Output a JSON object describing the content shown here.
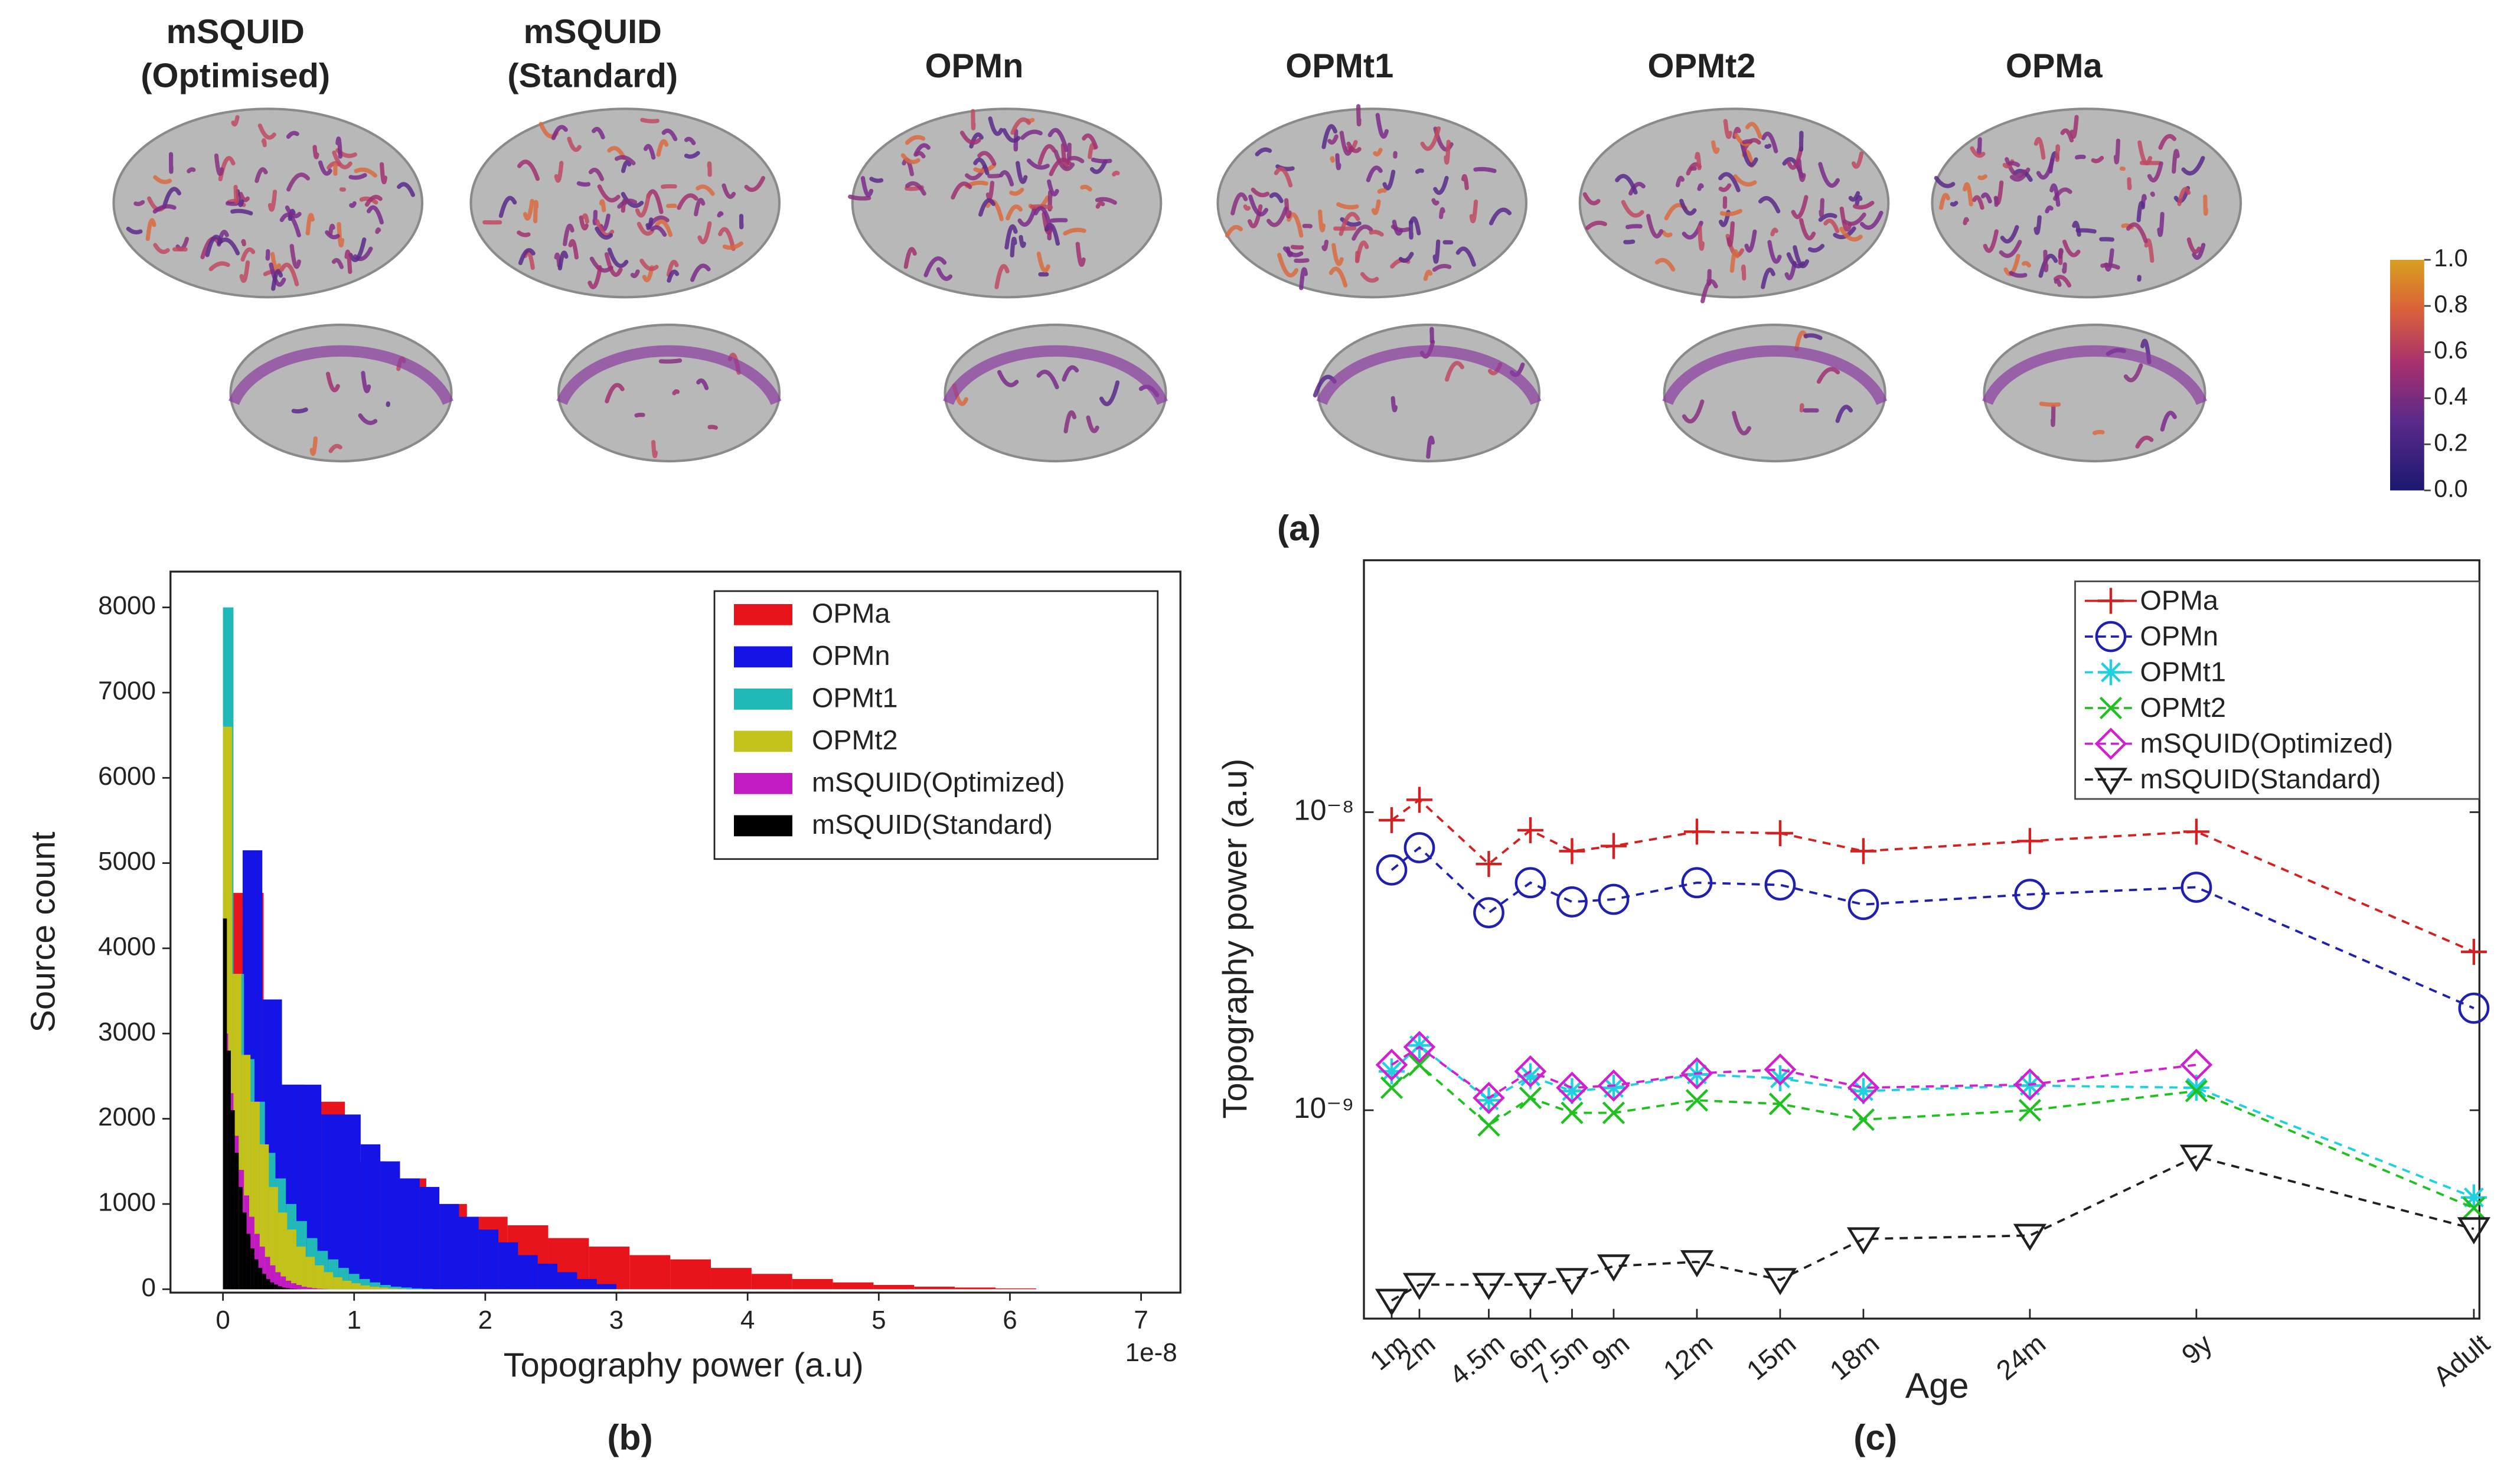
{
  "panel_a": {
    "labels": [
      [
        "mSQUID",
        "(Optimised)"
      ],
      [
        "mSQUID",
        "(Standard)"
      ],
      [
        "OPMn"
      ],
      [
        "OPMt1"
      ],
      [
        "OPMt2"
      ],
      [
        "OPMa"
      ]
    ],
    "marker": "c",
    "caption": "(a)",
    "colorbar_ticks": [
      {
        "value": 0,
        "label": "0.0"
      },
      0.2,
      0.4,
      0.6,
      0.8,
      {
        "value": 1,
        "label": "1.0"
      }
    ]
  },
  "chart_data": [
    {
      "type": "histogram",
      "caption": "(b)",
      "xlabel": "Topography power (a.u)",
      "ylabel": "Source count",
      "x_offset_label": "1e-8",
      "xlim": [
        -0.4,
        7.3
      ],
      "ylim": [
        -40,
        8420
      ],
      "xticks": [
        0,
        1,
        2,
        3,
        4,
        5,
        6,
        7
      ],
      "yticks": [
        0,
        1000,
        2000,
        3000,
        4000,
        5000,
        6000,
        7000,
        8000
      ],
      "legend": "upper right",
      "series": [
        {
          "name": "OPMa",
          "color": "#e8141b",
          "bins": [
            0,
            0.31,
            0.62,
            0.93,
            1.24,
            1.55,
            1.86,
            2.17,
            2.48,
            2.79,
            3.1,
            3.41,
            3.72,
            4.03,
            4.34,
            4.65,
            4.96,
            5.27,
            5.58,
            5.89,
            6.2
          ],
          "values": [
            4650,
            2400,
            2200,
            1500,
            1300,
            1000,
            850,
            750,
            600,
            500,
            400,
            350,
            250,
            180,
            120,
            80,
            50,
            30,
            20,
            10
          ]
        },
        {
          "name": "OPMn",
          "color": "#1414e6",
          "bins": [
            0,
            0.15,
            0.3,
            0.45,
            0.6,
            0.75,
            0.9,
            1.05,
            1.2,
            1.35,
            1.5,
            1.65,
            1.8,
            1.95,
            2.1,
            2.25,
            2.4,
            2.55,
            2.7,
            2.85,
            3.0
          ],
          "values": [
            3500,
            5150,
            3400,
            2400,
            2400,
            2050,
            2050,
            1700,
            1500,
            1300,
            1200,
            1000,
            850,
            700,
            550,
            400,
            300,
            200,
            120,
            60
          ]
        },
        {
          "name": "OPMt1",
          "color": "#22b8b8",
          "bins": [
            0,
            0.08,
            0.16,
            0.24,
            0.32,
            0.4,
            0.48,
            0.56,
            0.64,
            0.72,
            0.8,
            0.88,
            0.96,
            1.04,
            1.12,
            1.2,
            1.28,
            1.36,
            1.44,
            1.52,
            1.6
          ],
          "values": [
            8000,
            3700,
            2700,
            2200,
            1600,
            1300,
            1000,
            800,
            600,
            450,
            350,
            250,
            180,
            120,
            80,
            50,
            30,
            20,
            10,
            5
          ]
        },
        {
          "name": "OPMt2",
          "color": "#c2c21a",
          "bins": [
            0,
            0.07,
            0.14,
            0.21,
            0.28,
            0.35,
            0.42,
            0.49,
            0.56,
            0.63,
            0.7,
            0.77,
            0.84,
            0.91,
            0.98,
            1.05,
            1.12,
            1.19,
            1.26,
            1.33,
            1.4
          ],
          "values": [
            6600,
            3700,
            2750,
            2200,
            1700,
            1200,
            900,
            700,
            500,
            380,
            280,
            200,
            140,
            100,
            70,
            45,
            30,
            20,
            10,
            5
          ]
        },
        {
          "name": "mSQUID(Optimized)",
          "color": "#c21ac2",
          "bins": [
            0,
            0.04,
            0.08,
            0.12,
            0.16,
            0.2,
            0.24,
            0.28,
            0.32,
            0.36,
            0.4,
            0.44,
            0.48,
            0.52,
            0.56,
            0.6,
            0.64,
            0.68,
            0.72,
            0.76,
            0.8
          ],
          "values": [
            3000,
            2300,
            1800,
            1400,
            1100,
            850,
            650,
            500,
            380,
            280,
            200,
            150,
            100,
            70,
            50,
            30,
            20,
            12,
            6,
            3
          ]
        },
        {
          "name": "mSQUID(Standard)",
          "color": "#000000",
          "bins": [
            0,
            0.03,
            0.06,
            0.09,
            0.12,
            0.15,
            0.18,
            0.21,
            0.24,
            0.27,
            0.3,
            0.33,
            0.36,
            0.39,
            0.42,
            0.45,
            0.48,
            0.51,
            0.54,
            0.57,
            0.6
          ],
          "values": [
            4350,
            2800,
            2100,
            1600,
            1200,
            900,
            650,
            480,
            350,
            250,
            180,
            120,
            80,
            55,
            35,
            20,
            12,
            6,
            3,
            1
          ]
        }
      ]
    },
    {
      "type": "line",
      "caption": "(c)",
      "xlabel": "Age",
      "ylabel": "Topography power (a.u)",
      "log_y": true,
      "x": [
        1,
        2,
        4.5,
        6,
        7.5,
        9,
        12,
        15,
        18,
        24,
        30,
        40
      ],
      "xlim": [
        0,
        40.2
      ],
      "xticks": [
        {
          "value": 1,
          "label": "1m"
        },
        {
          "value": 2,
          "label": "2m"
        },
        {
          "value": 4.5,
          "label": "4.5m"
        },
        {
          "value": 6,
          "label": "6m"
        },
        {
          "value": 7.5,
          "label": "7.5m"
        },
        {
          "value": 9,
          "label": "9m"
        },
        {
          "value": 12,
          "label": "12m"
        },
        {
          "value": 15,
          "label": "15m"
        },
        {
          "value": 18,
          "label": "18m"
        },
        {
          "value": 24,
          "label": "24m"
        },
        {
          "value": 30,
          "label": "9y"
        },
        {
          "value": 40,
          "label": "Adult"
        }
      ],
      "ylim": [
        2e-10,
        7e-08
      ],
      "yticks": [
        {
          "value": 1e-09,
          "label": "10⁻⁹"
        },
        {
          "value": 1e-08,
          "label": "10⁻⁸"
        }
      ],
      "legend": "upper right",
      "series": [
        {
          "name": "OPMa",
          "color": "#d42020",
          "marker": "+",
          "values": [
            9.4e-09,
            1.1e-08,
            6.7e-09,
            8.7e-09,
            7.4e-09,
            7.7e-09,
            8.6e-09,
            8.5e-09,
            7.4e-09,
            8e-09,
            8.6e-09,
            3.4e-09
          ]
        },
        {
          "name": "OPMn",
          "color": "#2020b0",
          "marker": "o",
          "values": [
            6.4e-09,
            7.6e-09,
            4.6e-09,
            5.8e-09,
            5e-09,
            5.1e-09,
            5.8e-09,
            5.7e-09,
            4.9e-09,
            5.3e-09,
            5.6e-09,
            2.2e-09
          ]
        },
        {
          "name": "OPMt1",
          "color": "#20d0e0",
          "marker": "*",
          "values": [
            1.35e-09,
            1.65e-09,
            1.08e-09,
            1.3e-09,
            1.16e-09,
            1.19e-09,
            1.32e-09,
            1.28e-09,
            1.16e-09,
            1.21e-09,
            1.19e-09,
            5.1e-10
          ]
        },
        {
          "name": "OPMt2",
          "color": "#20c020",
          "marker": "x",
          "values": [
            1.19e-09,
            1.42e-09,
            8.9e-10,
            1.1e-09,
            9.8e-10,
            9.8e-10,
            1.08e-09,
            1.05e-09,
            9.3e-10,
            1e-09,
            1.16e-09,
            4.7e-10
          ]
        },
        {
          "name": "mSQUID(Optimized)",
          "color": "#d020d0",
          "marker": "d",
          "values": [
            1.42e-09,
            1.63e-09,
            1.1e-09,
            1.35e-09,
            1.19e-09,
            1.21e-09,
            1.33e-09,
            1.37e-09,
            1.19e-09,
            1.22e-09,
            1.42e-09,
            null
          ]
        },
        {
          "name": "mSQUID(Standard)",
          "color": "#202020",
          "marker": "v",
          "values": [
            2.3e-10,
            2.6e-10,
            2.6e-10,
            2.6e-10,
            2.7e-10,
            3e-10,
            3.1e-10,
            2.7e-10,
            3.7e-10,
            3.8e-10,
            7e-10,
            4e-10
          ]
        }
      ]
    }
  ]
}
